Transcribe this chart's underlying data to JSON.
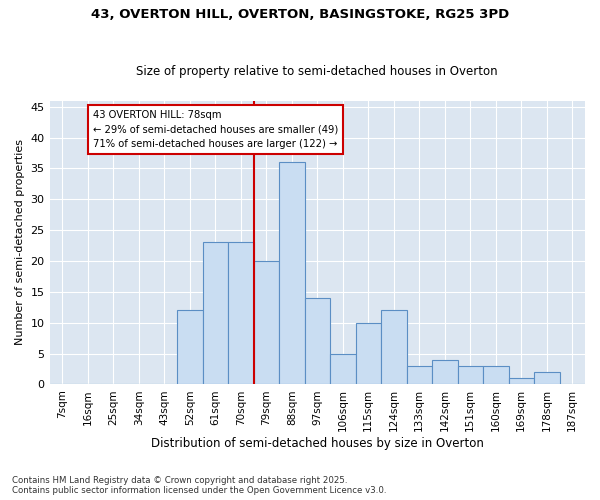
{
  "title1": "43, OVERTON HILL, OVERTON, BASINGSTOKE, RG25 3PD",
  "title2": "Size of property relative to semi-detached houses in Overton",
  "xlabel": "Distribution of semi-detached houses by size in Overton",
  "ylabel": "Number of semi-detached properties",
  "footer": "Contains HM Land Registry data © Crown copyright and database right 2025.\nContains public sector information licensed under the Open Government Licence v3.0.",
  "categories": [
    "7sqm",
    "16sqm",
    "25sqm",
    "34sqm",
    "43sqm",
    "52sqm",
    "61sqm",
    "70sqm",
    "79sqm",
    "88sqm",
    "97sqm",
    "106sqm",
    "115sqm",
    "124sqm",
    "133sqm",
    "142sqm",
    "151sqm",
    "160sqm",
    "169sqm",
    "178sqm",
    "187sqm"
  ],
  "values": [
    0,
    0,
    0,
    0,
    0,
    12,
    23,
    23,
    20,
    36,
    14,
    5,
    10,
    12,
    3,
    4,
    3,
    3,
    1,
    2,
    0
  ],
  "bar_color": "#c9ddf2",
  "bar_edge_color": "#5b8ec4",
  "bg_color": "#dce6f1",
  "grid_color": "#ffffff",
  "annotation_text": "43 OVERTON HILL: 78sqm\n← 29% of semi-detached houses are smaller (49)\n71% of semi-detached houses are larger (122) →",
  "vline_x": 7.5,
  "vline_color": "#cc0000",
  "box_color": "#cc0000",
  "ylim": [
    0,
    46
  ],
  "yticks": [
    0,
    5,
    10,
    15,
    20,
    25,
    30,
    35,
    40,
    45
  ]
}
